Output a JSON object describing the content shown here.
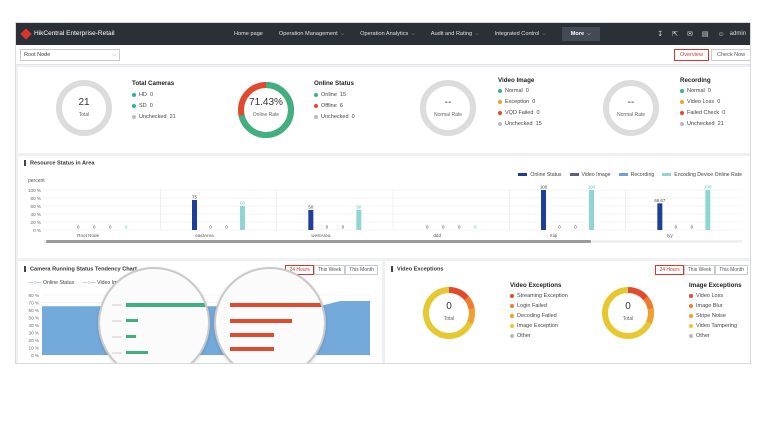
{
  "app": {
    "title": "HikCentral Enterprise-Retail"
  },
  "nav": {
    "items": [
      {
        "label": "Home page",
        "has_menu": false
      },
      {
        "label": "Operation Management",
        "has_menu": true
      },
      {
        "label": "Operation Analytics",
        "has_menu": true
      },
      {
        "label": "Audit and Rating",
        "has_menu": true
      },
      {
        "label": "Integrated Control",
        "has_menu": true
      }
    ],
    "more": "More",
    "user": "admin",
    "icons": [
      "download-icon",
      "export-icon",
      "mail-icon",
      "clipboard-icon",
      "user-icon"
    ]
  },
  "toolbar": {
    "root_node": "Root Node",
    "overview": "Overview",
    "check_now": "Check Now"
  },
  "stats": {
    "cameras": {
      "value": "21",
      "label": "Total",
      "title": "Total Cameras",
      "items": [
        {
          "label": "HD",
          "value": "0",
          "color": "#2bb3a0"
        },
        {
          "label": "SD",
          "value": "0",
          "color": "#2bb3a0"
        },
        {
          "label": "Unchecked",
          "value": "21",
          "color": "#bbbbbb"
        }
      ]
    },
    "online": {
      "value": "71.43%",
      "label": "Online Rate",
      "title": "Online Status",
      "fraction": 0.7143,
      "items": [
        {
          "label": "Online",
          "value": "15",
          "color": "#3fb07f"
        },
        {
          "label": "Offline",
          "value": "6",
          "color": "#e04a2f"
        },
        {
          "label": "Unchecked",
          "value": "0",
          "color": "#bbbbbb"
        }
      ]
    },
    "video": {
      "value": "--",
      "label": "Normal Rate",
      "title": "Video Image",
      "items": [
        {
          "label": "Normal",
          "value": "0",
          "color": "#3fb07f"
        },
        {
          "label": "Exception",
          "value": "0",
          "color": "#f0a030"
        },
        {
          "label": "VQD Failed",
          "value": "0",
          "color": "#e04a2f"
        },
        {
          "label": "Unchecked",
          "value": "15",
          "color": "#bbbbbb"
        }
      ]
    },
    "recording": {
      "value": "--",
      "label": "Normal Rate",
      "title": "Recording",
      "items": [
        {
          "label": "Normal",
          "value": "0",
          "color": "#3fb07f"
        },
        {
          "label": "Video Loss",
          "value": "0",
          "color": "#f0a030"
        },
        {
          "label": "Failed Check",
          "value": "0",
          "color": "#e04a2f"
        },
        {
          "label": "Unchecked",
          "value": "21",
          "color": "#bbbbbb"
        }
      ]
    }
  },
  "resource": {
    "title": "Resource Status in Area",
    "ylabel": "percent"
  },
  "chart_data": [
    {
      "type": "bar",
      "ylabel": "percent",
      "ylim": [
        0,
        100
      ],
      "yticks": [
        "0 %",
        "20 %",
        "40 %",
        "60 %",
        "80 %",
        "100 %"
      ],
      "categories": [
        "Root Node",
        "eastArea",
        "westArea",
        "ddd",
        "Xiqi",
        "tyy"
      ],
      "legend_position": "top-right",
      "series": [
        {
          "name": "Online Status",
          "color": "#1f3d9a",
          "values": [
            0,
            75,
            50,
            0,
            100,
            66.67
          ],
          "labels": [
            "0",
            "75",
            "50",
            "0",
            "100",
            "66.67"
          ]
        },
        {
          "name": "Video Image",
          "color": "#5a6378",
          "values": [
            0,
            0,
            0,
            0,
            0,
            0
          ],
          "labels": [
            "0",
            "0",
            "0",
            "0",
            "0",
            "0"
          ]
        },
        {
          "name": "Recording",
          "color": "#6fa0d8",
          "values": [
            0,
            0,
            0,
            0,
            0,
            0
          ],
          "labels": [
            "0",
            "0",
            "0",
            "0",
            "0",
            "0"
          ]
        },
        {
          "name": "Encoding Device Online Rate",
          "color": "#8fd6d2",
          "values": [
            0,
            60,
            50,
            0,
            100,
            100
          ],
          "labels": [
            "0",
            "60",
            "50",
            "0",
            "100",
            "100"
          ]
        }
      ]
    },
    {
      "type": "area",
      "ylim": [
        0,
        80
      ],
      "yticks": [
        "0 %",
        "10 %",
        "20 %",
        "30 %",
        "40 %",
        "50 %",
        "60 %",
        "70 %",
        "80 %"
      ],
      "legend": [
        "Online Status",
        "Video Image"
      ],
      "series": [
        {
          "name": "Online Status",
          "color": "#5b9bd5",
          "values": [
            65,
            65,
            65,
            65,
            65,
            65,
            65,
            65,
            65,
            62,
            72,
            72
          ]
        }
      ]
    }
  ],
  "tendency": {
    "title": "Camera Running Status Tendency Chart",
    "ranges": [
      "24 Hours",
      "This Week",
      "This Month"
    ],
    "active": 0,
    "legend": [
      {
        "label": "Online Status",
        "color": "#5b9bd5"
      },
      {
        "label": "Video Image",
        "color": "#7f8c9c"
      }
    ]
  },
  "exceptions": {
    "title": "Video Exceptions",
    "ranges": [
      "24 Hours",
      "This Week",
      "This Month"
    ],
    "active": 0,
    "video": {
      "value": "0",
      "label": "Total",
      "title": "Video Exceptions",
      "items": [
        {
          "label": "Streaming Exception",
          "color": "#e04a2f"
        },
        {
          "label": "Login Failed",
          "color": "#f07a30"
        },
        {
          "label": "Decoding Failed",
          "color": "#f0a030"
        },
        {
          "label": "Image Exception",
          "color": "#e8c830"
        },
        {
          "label": "Other",
          "color": "#bbbbbb"
        }
      ]
    },
    "image": {
      "value": "0",
      "label": "Total",
      "title": "Image Exceptions",
      "items": [
        {
          "label": "Video Loss",
          "color": "#e04a2f"
        },
        {
          "label": "Image Blur",
          "color": "#f07a30"
        },
        {
          "label": "Stripe Noise",
          "color": "#f0a030"
        },
        {
          "label": "Video Tampering",
          "color": "#e8c830"
        },
        {
          "label": "Other",
          "color": "#bbbbbb"
        }
      ]
    }
  }
}
